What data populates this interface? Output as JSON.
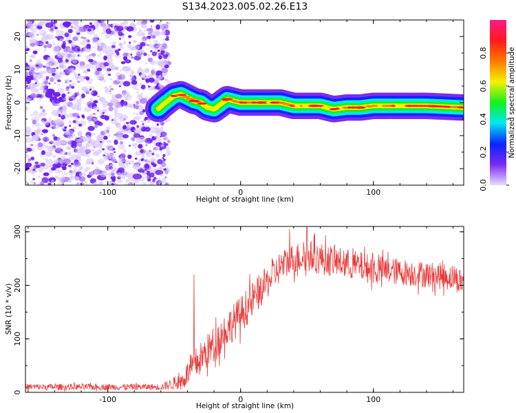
{
  "figure": {
    "title": "S134.2023.005.02.26.E13"
  },
  "chart_data": [
    {
      "type": "heatmap",
      "title": "",
      "xlabel": "Height of straight line (km)",
      "ylabel": "Frequency (Hz)",
      "xlim": [
        -162,
        168
      ],
      "ylim": [
        -25,
        25
      ],
      "xticks": [
        -100,
        0,
        100
      ],
      "xtick_labels": [
        "-100",
        "0",
        "100"
      ],
      "yticks": [
        -20,
        -10,
        0,
        10,
        20
      ],
      "ytick_labels": [
        "-20",
        "-10",
        "0",
        "10",
        "20"
      ],
      "noise_region_x": [
        -162,
        -58
      ],
      "ridge": {
        "x": [
          -65,
          -58,
          -50,
          -45,
          -40,
          -35,
          -30,
          -25,
          -20,
          -15,
          -10,
          -5,
          0,
          10,
          20,
          30,
          40,
          50,
          60,
          70,
          80,
          90,
          100,
          120,
          140,
          168
        ],
        "freq": [
          -3,
          -0.5,
          2,
          2.5,
          1.5,
          0.5,
          0,
          -1.5,
          -2,
          -0.5,
          1,
          0.5,
          0,
          0,
          0,
          0,
          -1,
          -1,
          -1,
          -2,
          -1.5,
          -1.5,
          -1,
          -1,
          -1,
          -1.5
        ]
      },
      "peaks_x": [
        -35,
        -10,
        15,
        55,
        90,
        145
      ],
      "colorbar": {
        "label": "Normalized spectral amplitude",
        "range": [
          0.0,
          1.0
        ],
        "ticks": [
          0.0,
          0.2,
          0.4,
          0.6,
          0.8
        ],
        "tick_labels": [
          "0.0",
          "0.2",
          "0.4",
          "0.6",
          "0.8"
        ],
        "colors": [
          "#e6dcff",
          "#7a2cf0",
          "#0b22ff",
          "#00e8f0",
          "#16f020",
          "#f4f200",
          "#ff7a00",
          "#ff1a1a",
          "#ff1a8c"
        ]
      }
    },
    {
      "type": "line",
      "title": "",
      "xlabel": "Height of straight line (km)",
      "ylabel": "SNR (10 * v/v)",
      "xlim": [
        -162,
        168
      ],
      "ylim": [
        0,
        310
      ],
      "xticks": [
        -100,
        0,
        100
      ],
      "xtick_labels": [
        "-100",
        "0",
        "100"
      ],
      "yticks": [
        0,
        100,
        200,
        300
      ],
      "ytick_labels": [
        "0",
        "100",
        "200",
        "300"
      ],
      "color": "#e83a3a",
      "envelope": {
        "x": [
          -162,
          -60,
          -45,
          -35,
          -20,
          -10,
          0,
          10,
          20,
          30,
          40,
          50,
          60,
          80,
          100,
          120,
          140,
          160,
          168
        ],
        "mean": [
          10,
          10,
          20,
          50,
          90,
          120,
          145,
          175,
          205,
          235,
          250,
          255,
          250,
          240,
          230,
          225,
          220,
          215,
          205
        ],
        "spread": [
          6,
          6,
          15,
          30,
          35,
          35,
          35,
          35,
          30,
          30,
          30,
          30,
          30,
          28,
          28,
          25,
          25,
          25,
          25
        ]
      },
      "notable_points": [
        {
          "x": -35,
          "y": 220
        },
        {
          "x": 50,
          "y": 310
        },
        {
          "x": 37,
          "y": 305
        }
      ]
    }
  ]
}
